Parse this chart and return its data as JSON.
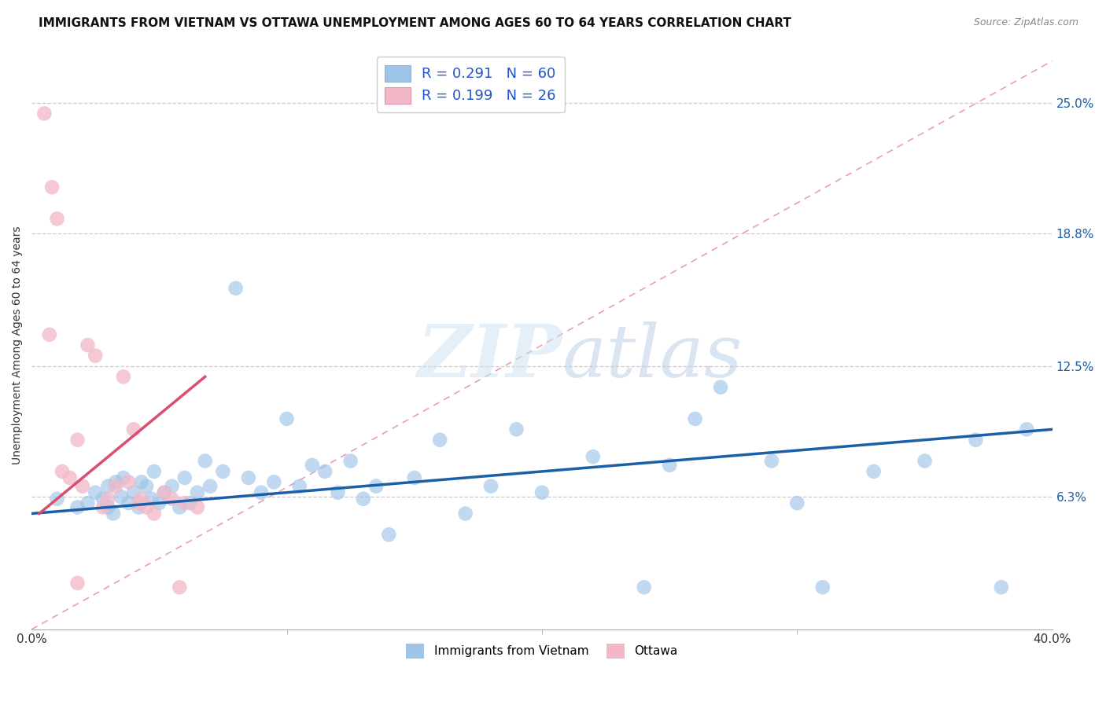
{
  "title": "IMMIGRANTS FROM VIETNAM VS OTTAWA UNEMPLOYMENT AMONG AGES 60 TO 64 YEARS CORRELATION CHART",
  "source": "Source: ZipAtlas.com",
  "ylabel": "Unemployment Among Ages 60 to 64 years",
  "xlim": [
    0.0,
    0.4
  ],
  "ylim": [
    0.0,
    0.27
  ],
  "xticklabels": [
    "0.0%",
    "40.0%"
  ],
  "right_yticks": [
    0.063,
    0.125,
    0.188,
    0.25
  ],
  "right_yticklabels": [
    "6.3%",
    "12.5%",
    "18.8%",
    "25.0%"
  ],
  "blue_color": "#9ec4e8",
  "pink_color": "#f2b8c6",
  "blue_trend_color": "#1a5fa8",
  "pink_trend_color": "#d94f6e",
  "diagonal_color": "#e8a0b0",
  "title_fontsize": 11,
  "source_fontsize": 9,
  "blue_scatter_x": [
    0.01,
    0.018,
    0.022,
    0.025,
    0.028,
    0.03,
    0.03,
    0.032,
    0.033,
    0.035,
    0.036,
    0.038,
    0.04,
    0.042,
    0.043,
    0.045,
    0.047,
    0.048,
    0.05,
    0.052,
    0.055,
    0.058,
    0.06,
    0.062,
    0.065,
    0.068,
    0.07,
    0.075,
    0.08,
    0.085,
    0.09,
    0.095,
    0.1,
    0.105,
    0.11,
    0.115,
    0.12,
    0.125,
    0.13,
    0.135,
    0.14,
    0.15,
    0.16,
    0.17,
    0.18,
    0.19,
    0.2,
    0.22,
    0.24,
    0.25,
    0.26,
    0.27,
    0.29,
    0.3,
    0.31,
    0.33,
    0.35,
    0.37,
    0.38,
    0.39
  ],
  "blue_scatter_y": [
    0.062,
    0.058,
    0.06,
    0.065,
    0.062,
    0.058,
    0.068,
    0.055,
    0.07,
    0.063,
    0.072,
    0.06,
    0.065,
    0.058,
    0.07,
    0.068,
    0.062,
    0.075,
    0.06,
    0.065,
    0.068,
    0.058,
    0.072,
    0.06,
    0.065,
    0.08,
    0.068,
    0.075,
    0.162,
    0.072,
    0.065,
    0.07,
    0.1,
    0.068,
    0.078,
    0.075,
    0.065,
    0.08,
    0.062,
    0.068,
    0.045,
    0.072,
    0.09,
    0.055,
    0.068,
    0.095,
    0.065,
    0.082,
    0.02,
    0.078,
    0.1,
    0.115,
    0.08,
    0.06,
    0.02,
    0.075,
    0.08,
    0.09,
    0.02,
    0.095
  ],
  "pink_scatter_x": [
    0.005,
    0.007,
    0.008,
    0.01,
    0.012,
    0.015,
    0.018,
    0.02,
    0.022,
    0.025,
    0.028,
    0.03,
    0.033,
    0.036,
    0.038,
    0.04,
    0.042,
    0.043,
    0.045,
    0.048,
    0.052,
    0.055,
    0.058,
    0.06,
    0.065,
    0.018
  ],
  "pink_scatter_y": [
    0.245,
    0.14,
    0.21,
    0.195,
    0.075,
    0.072,
    0.09,
    0.068,
    0.135,
    0.13,
    0.058,
    0.062,
    0.068,
    0.12,
    0.07,
    0.095,
    0.06,
    0.062,
    0.058,
    0.055,
    0.065,
    0.062,
    0.02,
    0.06,
    0.058,
    0.022
  ],
  "pink_trend_x0": 0.003,
  "pink_trend_x1": 0.068,
  "pink_trend_y0": 0.055,
  "pink_trend_y1": 0.12,
  "blue_trend_x0": 0.0,
  "blue_trend_x1": 0.4,
  "blue_trend_y0": 0.055,
  "blue_trend_y1": 0.095
}
